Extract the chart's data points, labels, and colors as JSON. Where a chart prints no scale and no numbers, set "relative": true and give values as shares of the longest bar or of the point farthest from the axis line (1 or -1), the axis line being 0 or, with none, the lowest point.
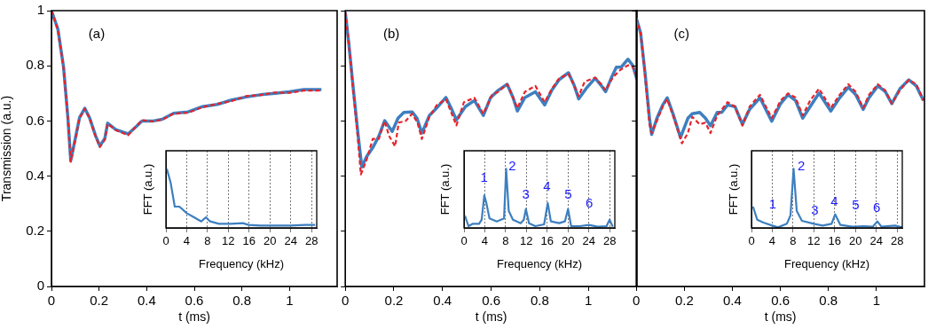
{
  "chart_data": [
    {
      "type": "line",
      "xlabel": "t (ms)",
      "ylabel": "Transmission (a.u.)",
      "xlim": [
        0,
        1.2
      ],
      "ylim": [
        0,
        1
      ],
      "xticks": [
        0,
        0.2,
        0.4,
        0.6,
        0.8,
        1
      ],
      "yticks": [
        0,
        0.2,
        0.4,
        0.6,
        0.8,
        1
      ],
      "grid": false,
      "legend": false,
      "marker": "none",
      "annotations": [
        "(a)"
      ],
      "series": [
        {
          "color": "#3d7fc0",
          "line_style": "solid",
          "x": [
            0,
            0.027,
            0.051,
            0.069,
            0.081,
            0.1,
            0.118,
            0.14,
            0.16,
            0.185,
            0.203,
            0.224,
            0.236,
            0.27,
            0.322,
            0.355,
            0.38,
            0.428,
            0.465,
            0.513,
            0.574,
            0.635,
            0.696,
            0.757,
            0.818,
            0.878,
            0.939,
            1.0,
            1.06,
            1.134
          ],
          "values": [
            1.0,
            0.933,
            0.794,
            0.612,
            0.456,
            0.536,
            0.612,
            0.646,
            0.612,
            0.547,
            0.51,
            0.536,
            0.592,
            0.569,
            0.553,
            0.579,
            0.6,
            0.6,
            0.606,
            0.628,
            0.633,
            0.652,
            0.66,
            0.676,
            0.687,
            0.695,
            0.7,
            0.706,
            0.714,
            0.714
          ]
        },
        {
          "color": "#e8232a",
          "line_style": "dashed",
          "x": [
            0,
            0.027,
            0.051,
            0.069,
            0.081,
            0.1,
            0.118,
            0.14,
            0.16,
            0.185,
            0.203,
            0.224,
            0.236,
            0.27,
            0.322,
            0.355,
            0.38,
            0.428,
            0.465,
            0.513,
            0.574,
            0.635,
            0.696,
            0.757,
            0.818,
            0.878,
            0.939,
            1.0,
            1.06,
            1.134
          ],
          "values": [
            1.0,
            0.93,
            0.79,
            0.61,
            0.452,
            0.532,
            0.61,
            0.644,
            0.61,
            0.545,
            0.505,
            0.532,
            0.59,
            0.567,
            0.548,
            0.58,
            0.603,
            0.598,
            0.605,
            0.626,
            0.63,
            0.65,
            0.662,
            0.672,
            0.69,
            0.694,
            0.703,
            0.702,
            0.71,
            0.71
          ]
        }
      ]
    },
    {
      "type": "line",
      "relative": true,
      "xlabel": "Frequency (kHz)",
      "ylabel": "FFT (a.u.)",
      "xlim": [
        0,
        29
      ],
      "xticks": [
        0,
        4,
        8,
        12,
        16,
        20,
        24,
        28
      ],
      "grid": "x",
      "legend": false,
      "marker": "none",
      "series": [
        {
          "color": "#3d7fc0",
          "x": [
            0.17,
            0.9,
            1.7,
            2.6,
            4,
            5.4,
            6.8,
            7.7,
            8.5,
            10.2,
            12.5,
            14.8,
            15.9,
            18.2,
            21,
            23.9,
            26.7,
            28.7
          ],
          "values": [
            1,
            0.77,
            0.36,
            0.36,
            0.25,
            0.18,
            0.11,
            0.18,
            0.11,
            0.07,
            0.07,
            0.08,
            0.05,
            0.04,
            0.04,
            0.04,
            0.05,
            0.05
          ]
        }
      ]
    },
    {
      "type": "line",
      "xlabel": "t (ms)",
      "xlim": [
        0,
        1.2
      ],
      "ylim": [
        0,
        1
      ],
      "xticks": [
        0,
        0.2,
        0.4,
        0.6,
        0.8,
        1
      ],
      "yticks": [
        0,
        0.2,
        0.4,
        0.6,
        0.8,
        1
      ],
      "tick_labels": "x",
      "grid": false,
      "legend": false,
      "marker": "none",
      "annotations": [
        "(b)"
      ],
      "series": [
        {
          "color": "#3d7fc0",
          "line_style": "solid",
          "x": [
            0,
            0.015,
            0.033,
            0.052,
            0.068,
            0.088,
            0.113,
            0.138,
            0.162,
            0.193,
            0.217,
            0.241,
            0.275,
            0.295,
            0.315,
            0.346,
            0.371,
            0.414,
            0.438,
            0.457,
            0.494,
            0.531,
            0.568,
            0.598,
            0.629,
            0.666,
            0.69,
            0.708,
            0.739,
            0.782,
            0.82,
            0.85,
            0.88,
            0.918,
            0.942,
            0.96,
            0.991,
            1.028,
            1.053,
            1.071,
            1.096,
            1.115,
            1.135,
            1.163,
            1.182,
            1.2
          ],
          "values": [
            0.995,
            0.877,
            0.717,
            0.556,
            0.433,
            0.471,
            0.503,
            0.545,
            0.601,
            0.562,
            0.61,
            0.631,
            0.633,
            0.61,
            0.556,
            0.62,
            0.642,
            0.685,
            0.642,
            0.604,
            0.652,
            0.674,
            0.62,
            0.685,
            0.711,
            0.733,
            0.685,
            0.636,
            0.685,
            0.706,
            0.658,
            0.712,
            0.75,
            0.775,
            0.728,
            0.68,
            0.718,
            0.755,
            0.728,
            0.706,
            0.76,
            0.795,
            0.795,
            0.824,
            0.802,
            0.75
          ]
        },
        {
          "color": "#e8232a",
          "line_style": "dashed",
          "x": [
            0,
            0.015,
            0.033,
            0.052,
            0.064,
            0.088,
            0.113,
            0.138,
            0.162,
            0.18,
            0.205,
            0.22,
            0.248,
            0.275,
            0.297,
            0.315,
            0.346,
            0.377,
            0.414,
            0.438,
            0.457,
            0.488,
            0.531,
            0.568,
            0.604,
            0.629,
            0.666,
            0.69,
            0.708,
            0.739,
            0.782,
            0.82,
            0.85,
            0.88,
            0.918,
            0.942,
            0.96,
            0.985,
            1.028,
            1.053,
            1.071,
            1.102,
            1.133,
            1.163,
            1.182,
            1.2
          ],
          "values": [
            0.995,
            0.877,
            0.706,
            0.535,
            0.406,
            0.46,
            0.535,
            0.535,
            0.6,
            0.546,
            0.508,
            0.594,
            0.6,
            0.626,
            0.594,
            0.535,
            0.615,
            0.658,
            0.679,
            0.626,
            0.584,
            0.668,
            0.684,
            0.626,
            0.695,
            0.706,
            0.733,
            0.685,
            0.647,
            0.706,
            0.727,
            0.668,
            0.717,
            0.755,
            0.77,
            0.728,
            0.69,
            0.743,
            0.757,
            0.733,
            0.711,
            0.76,
            0.786,
            0.802,
            0.797,
            0.76
          ]
        }
      ]
    },
    {
      "type": "line",
      "relative": true,
      "xlabel": "Frequency (kHz)",
      "ylabel": "FFT (a.u.)",
      "xlim": [
        0,
        29
      ],
      "xticks": [
        0,
        4,
        8,
        12,
        16,
        20,
        24,
        28
      ],
      "grid": "x",
      "legend": false,
      "marker": "none",
      "annotations": [
        "1",
        "2",
        "3",
        "4",
        "5",
        "6"
      ],
      "series": [
        {
          "color": "#3d7fc0",
          "x": [
            0.17,
            0.86,
            1.7,
            2.9,
            3.4,
            3.9,
            4.3,
            4.9,
            6.3,
            7.7,
            8.1,
            8.6,
            9.4,
            10.9,
            11.5,
            11.9,
            12.5,
            13.7,
            15.4,
            16.1,
            16.7,
            18.3,
            19.4,
            20,
            20.6,
            22.3,
            24,
            25.7,
            27.4,
            28,
            28.6
          ],
          "values": [
            0.21,
            0.03,
            0.07,
            0.07,
            0.14,
            0.55,
            0.42,
            0.16,
            0.11,
            0.16,
            1,
            0.29,
            0.14,
            0.08,
            0.14,
            0.32,
            0.08,
            0.03,
            0.06,
            0.42,
            0.11,
            0.08,
            0.11,
            0.32,
            0.03,
            0.03,
            0.05,
            0.02,
            0.03,
            0.14,
            0.02
          ]
        }
      ]
    },
    {
      "type": "line",
      "xlabel": "t (ms)",
      "xlim": [
        0,
        1.2
      ],
      "ylim": [
        0,
        1
      ],
      "xticks": [
        0,
        0.2,
        0.4,
        0.6,
        0.8,
        1
      ],
      "yticks": [
        0,
        0.2,
        0.4,
        0.6,
        0.8,
        1
      ],
      "tick_labels": "x",
      "grid": false,
      "legend": false,
      "marker": "none",
      "annotations": [
        "(c)"
      ],
      "series": [
        {
          "color": "#3d7fc0",
          "line_style": "solid",
          "x": [
            0,
            0.018,
            0.037,
            0.055,
            0.064,
            0.086,
            0.11,
            0.129,
            0.153,
            0.184,
            0.215,
            0.233,
            0.264,
            0.288,
            0.309,
            0.337,
            0.356,
            0.38,
            0.411,
            0.442,
            0.472,
            0.515,
            0.564,
            0.601,
            0.632,
            0.663,
            0.693,
            0.724,
            0.761,
            0.81,
            0.847,
            0.883,
            0.914,
            0.945,
            0.969,
            1.006,
            1.037,
            1.064,
            1.098,
            1.135,
            1.166,
            1.196
          ],
          "values": [
            0.973,
            0.92,
            0.77,
            0.61,
            0.551,
            0.61,
            0.658,
            0.684,
            0.626,
            0.54,
            0.61,
            0.626,
            0.631,
            0.61,
            0.583,
            0.631,
            0.631,
            0.658,
            0.652,
            0.588,
            0.642,
            0.684,
            0.599,
            0.663,
            0.695,
            0.674,
            0.61,
            0.652,
            0.701,
            0.636,
            0.684,
            0.722,
            0.695,
            0.642,
            0.684,
            0.727,
            0.706,
            0.663,
            0.717,
            0.749,
            0.727,
            0.674
          ]
        },
        {
          "color": "#e8232a",
          "line_style": "dashed",
          "x": [
            0,
            0.018,
            0.037,
            0.055,
            0.064,
            0.086,
            0.11,
            0.129,
            0.153,
            0.19,
            0.215,
            0.233,
            0.264,
            0.288,
            0.309,
            0.337,
            0.38,
            0.411,
            0.442,
            0.472,
            0.515,
            0.564,
            0.601,
            0.632,
            0.663,
            0.693,
            0.724,
            0.761,
            0.81,
            0.847,
            0.883,
            0.914,
            0.945,
            0.969,
            1.006,
            1.037,
            1.064,
            1.098,
            1.135,
            1.166,
            1.196
          ],
          "values": [
            0.973,
            0.92,
            0.76,
            0.588,
            0.556,
            0.6,
            0.652,
            0.679,
            0.62,
            0.519,
            0.556,
            0.615,
            0.588,
            0.594,
            0.556,
            0.62,
            0.668,
            0.652,
            0.583,
            0.652,
            0.695,
            0.61,
            0.674,
            0.7,
            0.685,
            0.62,
            0.674,
            0.717,
            0.647,
            0.695,
            0.733,
            0.705,
            0.647,
            0.695,
            0.733,
            0.71,
            0.663,
            0.712,
            0.749,
            0.733,
            0.674
          ]
        }
      ]
    },
    {
      "type": "line",
      "relative": true,
      "xlabel": "Frequency (kHz)",
      "ylabel": "FFT (a.u.)",
      "xlim": [
        0,
        29
      ],
      "xticks": [
        0,
        4,
        8,
        12,
        16,
        20,
        24,
        28
      ],
      "grid": "x",
      "legend": false,
      "marker": "none",
      "annotations": [
        "1",
        "2",
        "3",
        "4",
        "5",
        "6"
      ],
      "series": [
        {
          "color": "#3d7fc0",
          "x": [
            0.3,
            1.1,
            2.3,
            4,
            5.1,
            6.8,
            7.5,
            8.1,
            8.7,
            9.7,
            12,
            13.7,
            15.4,
            16.1,
            17.1,
            19.4,
            21.6,
            23.3,
            24.2,
            25,
            27.6,
            29
          ],
          "values": [
            0.36,
            0.14,
            0.09,
            0.04,
            0.01,
            0.07,
            0.21,
            1,
            0.29,
            0.12,
            0.07,
            0.04,
            0.07,
            0.23,
            0.05,
            0.02,
            0.03,
            0.02,
            0.11,
            0.02,
            0.04,
            0.01
          ]
        }
      ]
    }
  ]
}
